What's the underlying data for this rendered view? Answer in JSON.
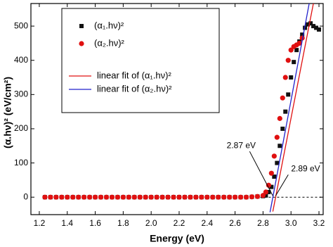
{
  "chart_data": {
    "type": "scatter",
    "x_label": "Energy (eV)",
    "y_label": "(α.hν)² (eV/cm²)",
    "xlim": [
      1.14,
      3.23
    ],
    "ylim": [
      -51,
      566
    ],
    "xticks": [
      1.2,
      1.4,
      1.6,
      1.8,
      {
        "value": 2,
        "label": "2.0"
      },
      2.2,
      2.4,
      2.6,
      2.8,
      {
        "value": 3,
        "label": "3.0"
      },
      3.2
    ],
    "yticks": [
      0,
      100,
      200,
      300,
      400,
      500
    ],
    "series": [
      {
        "name": "(α₁.hν)²",
        "color": "#111111",
        "marker": "square",
        "x": [
          1.24,
          1.28,
          1.32,
          1.36,
          1.4,
          1.44,
          1.48,
          1.52,
          1.56,
          1.6,
          1.64,
          1.68,
          1.72,
          1.76,
          1.8,
          1.84,
          1.88,
          1.92,
          1.96,
          2.0,
          2.04,
          2.08,
          2.12,
          2.16,
          2.2,
          2.24,
          2.28,
          2.32,
          2.36,
          2.4,
          2.44,
          2.48,
          2.52,
          2.56,
          2.6,
          2.64,
          2.68,
          2.72,
          2.76,
          2.8,
          2.82,
          2.84,
          2.86,
          2.88,
          2.9,
          2.92,
          2.94,
          2.96,
          2.98,
          3.0,
          3.02,
          3.04,
          3.06,
          3.08,
          3.1,
          3.12,
          3.14,
          3.16,
          3.18,
          3.2
        ],
        "values": [
          0,
          0,
          0,
          0,
          0,
          0,
          0,
          0,
          0,
          0,
          0,
          0,
          0,
          0,
          0,
          0,
          0,
          0,
          0,
          0,
          0,
          0,
          0,
          0,
          0,
          0,
          0,
          0,
          0,
          0,
          0,
          0,
          0,
          0,
          0,
          0,
          0,
          1,
          2,
          3,
          5,
          15,
          30,
          60,
          100,
          150,
          200,
          250,
          300,
          350,
          395,
          430,
          455,
          475,
          495,
          505,
          508,
          500,
          495,
          490
        ]
      },
      {
        "name": "(α₂.hν)²",
        "color": "#e01010",
        "marker": "circle",
        "x": [
          1.24,
          1.28,
          1.32,
          1.36,
          1.4,
          1.44,
          1.48,
          1.52,
          1.56,
          1.6,
          1.64,
          1.68,
          1.72,
          1.76,
          1.8,
          1.84,
          1.88,
          1.92,
          1.96,
          2.0,
          2.04,
          2.08,
          2.12,
          2.16,
          2.2,
          2.24,
          2.28,
          2.32,
          2.36,
          2.4,
          2.44,
          2.48,
          2.52,
          2.56,
          2.6,
          2.64,
          2.68,
          2.72,
          2.76,
          2.8,
          2.82,
          2.84,
          2.86,
          2.88,
          2.9,
          2.92,
          2.94,
          2.96,
          2.98,
          3.0,
          3.02,
          3.04,
          3.06,
          3.08
        ],
        "values": [
          0,
          0,
          0,
          0,
          0,
          0,
          0,
          0,
          0,
          0,
          0,
          0,
          0,
          0,
          0,
          0,
          0,
          0,
          0,
          0,
          0,
          0,
          0,
          0,
          0,
          0,
          0,
          0,
          0,
          0,
          0,
          0,
          0,
          0,
          0,
          0,
          0,
          1,
          2,
          5,
          15,
          35,
          70,
          120,
          175,
          230,
          290,
          350,
          400,
          430,
          440,
          445,
          450,
          465
        ]
      },
      {
        "name": "linear fit of (α₁.hν)²",
        "color": "#e01010",
        "marker": "line",
        "x": [
          2.87,
          3.16
        ],
        "values": [
          -42,
          566
        ]
      },
      {
        "name": "linear fit of (α₂.hν)²",
        "color": "#2222cc",
        "marker": "line",
        "x": [
          2.85,
          3.13
        ],
        "values": [
          -44,
          566
        ]
      }
    ],
    "annotations": [
      {
        "text": "2.87 eV",
        "x": 2.87
      },
      {
        "text": "2.89 eV",
        "x": 2.89
      }
    ]
  }
}
